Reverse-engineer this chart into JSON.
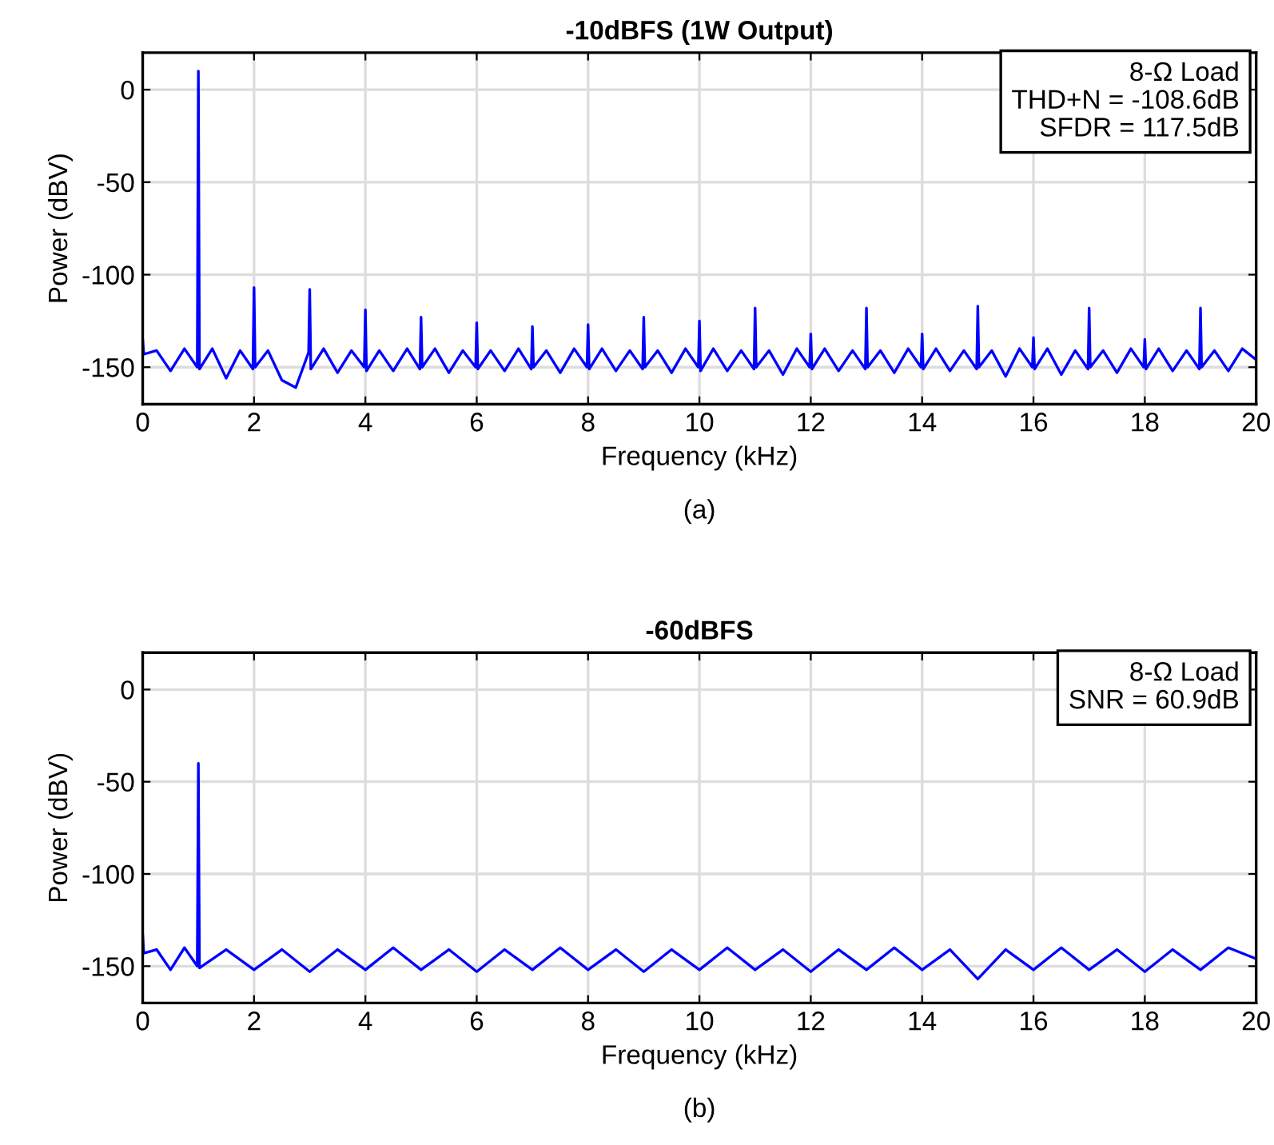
{
  "chart_data": [
    {
      "type": "line",
      "title": "-10dBFS (1W Output)",
      "xlabel": "Frequency (kHz)",
      "ylabel": "Power (dBV)",
      "xlim": [
        0,
        20
      ],
      "ylim": [
        -170,
        20
      ],
      "xticks": [
        0,
        2,
        4,
        6,
        8,
        10,
        12,
        14,
        16,
        18,
        20
      ],
      "yticks": [
        -150,
        -100,
        -50,
        0
      ],
      "grid": true,
      "annotations": [
        "8-Ω Load",
        "THD+N = -108.6dB",
        "SFDR = 117.5dB",
        "(a)"
      ],
      "series": [
        {
          "color": "#0000ff",
          "x": [
            0,
            0.02,
            0.25,
            0.5,
            0.75,
            0.98,
            1,
            1.02,
            1.25,
            1.5,
            1.75,
            1.98,
            2,
            2.02,
            2.25,
            2.5,
            2.75,
            2.98,
            3,
            3.02,
            3.25,
            3.5,
            3.75,
            3.98,
            4,
            4.02,
            4.25,
            4.5,
            4.75,
            4.98,
            5,
            5.02,
            5.25,
            5.5,
            5.75,
            5.98,
            6,
            6.02,
            6.25,
            6.5,
            6.75,
            6.98,
            7,
            7.02,
            7.25,
            7.5,
            7.75,
            7.98,
            8,
            8.02,
            8.25,
            8.5,
            8.75,
            8.98,
            9,
            9.02,
            9.25,
            9.5,
            9.75,
            9.98,
            10,
            10.02,
            10.25,
            10.5,
            10.75,
            10.98,
            11,
            11.02,
            11.25,
            11.5,
            11.75,
            11.98,
            12,
            12.02,
            12.25,
            12.5,
            12.75,
            12.98,
            13,
            13.02,
            13.25,
            13.5,
            13.75,
            13.98,
            14,
            14.02,
            14.25,
            14.5,
            14.75,
            14.98,
            15,
            15.02,
            15.25,
            15.5,
            15.75,
            15.98,
            16,
            16.02,
            16.25,
            16.5,
            16.75,
            16.98,
            17,
            17.02,
            17.25,
            17.5,
            17.75,
            17.98,
            18,
            18.02,
            18.25,
            18.5,
            18.75,
            18.98,
            19,
            19.02,
            19.25,
            19.5,
            19.75,
            20
          ],
          "values": [
            -135,
            -143,
            -141,
            -152,
            -140,
            -150,
            10,
            -151,
            -140,
            -156,
            -141,
            -151,
            -107,
            -150,
            -141,
            -157,
            -161,
            -142,
            -108,
            -151,
            -140,
            -153,
            -141,
            -150,
            -119,
            -152,
            -141,
            -152,
            -140,
            -151,
            -123,
            -150,
            -140,
            -153,
            -141,
            -150,
            -126,
            -151,
            -141,
            -152,
            -140,
            -151,
            -128,
            -150,
            -141,
            -153,
            -140,
            -150,
            -127,
            -151,
            -140,
            -152,
            -141,
            -151,
            -123,
            -150,
            -141,
            -153,
            -140,
            -150,
            -125,
            -152,
            -140,
            -152,
            -141,
            -151,
            -118,
            -150,
            -141,
            -154,
            -140,
            -150,
            -132,
            -151,
            -140,
            -152,
            -141,
            -151,
            -118,
            -150,
            -141,
            -153,
            -140,
            -150,
            -132,
            -151,
            -140,
            -152,
            -141,
            -151,
            -117,
            -150,
            -141,
            -155,
            -140,
            -150,
            -134,
            -151,
            -140,
            -154,
            -141,
            -151,
            -118,
            -150,
            -141,
            -153,
            -140,
            -150,
            -135,
            -151,
            -140,
            -152,
            -141,
            -151,
            -118,
            -150,
            -141,
            -152,
            -140,
            -146
          ]
        }
      ]
    },
    {
      "type": "line",
      "title": "-60dBFS",
      "xlabel": "Frequency (kHz)",
      "ylabel": "Power (dBV)",
      "xlim": [
        0,
        20
      ],
      "ylim": [
        -170,
        20
      ],
      "xticks": [
        0,
        2,
        4,
        6,
        8,
        10,
        12,
        14,
        16,
        18,
        20
      ],
      "yticks": [
        -150,
        -100,
        -50,
        0
      ],
      "grid": true,
      "annotations": [
        "8-Ω Load",
        "SNR = 60.9dB",
        "(b)"
      ],
      "series": [
        {
          "color": "#0000ff",
          "x": [
            0,
            0.02,
            0.25,
            0.5,
            0.75,
            0.98,
            1,
            1.02,
            1.5,
            2,
            2.5,
            3,
            3.5,
            4,
            4.5,
            5,
            5.5,
            6,
            6.5,
            7,
            7.5,
            8,
            8.5,
            9,
            9.5,
            10,
            10.5,
            11,
            11.5,
            12,
            12.5,
            13,
            13.5,
            14,
            14.5,
            15,
            15.5,
            16,
            16.5,
            17,
            17.5,
            18,
            18.5,
            19,
            19.5,
            20
          ],
          "values": [
            -133,
            -143,
            -141,
            -152,
            -140,
            -150,
            -40,
            -151,
            -141,
            -152,
            -141,
            -153,
            -141,
            -152,
            -140,
            -152,
            -141,
            -153,
            -141,
            -152,
            -140,
            -152,
            -141,
            -153,
            -141,
            -152,
            -140,
            -152,
            -141,
            -153,
            -141,
            -152,
            -140,
            -152,
            -141,
            -157,
            -141,
            -152,
            -140,
            -152,
            -141,
            -153,
            -141,
            -152,
            -140,
            -146
          ]
        }
      ]
    }
  ]
}
